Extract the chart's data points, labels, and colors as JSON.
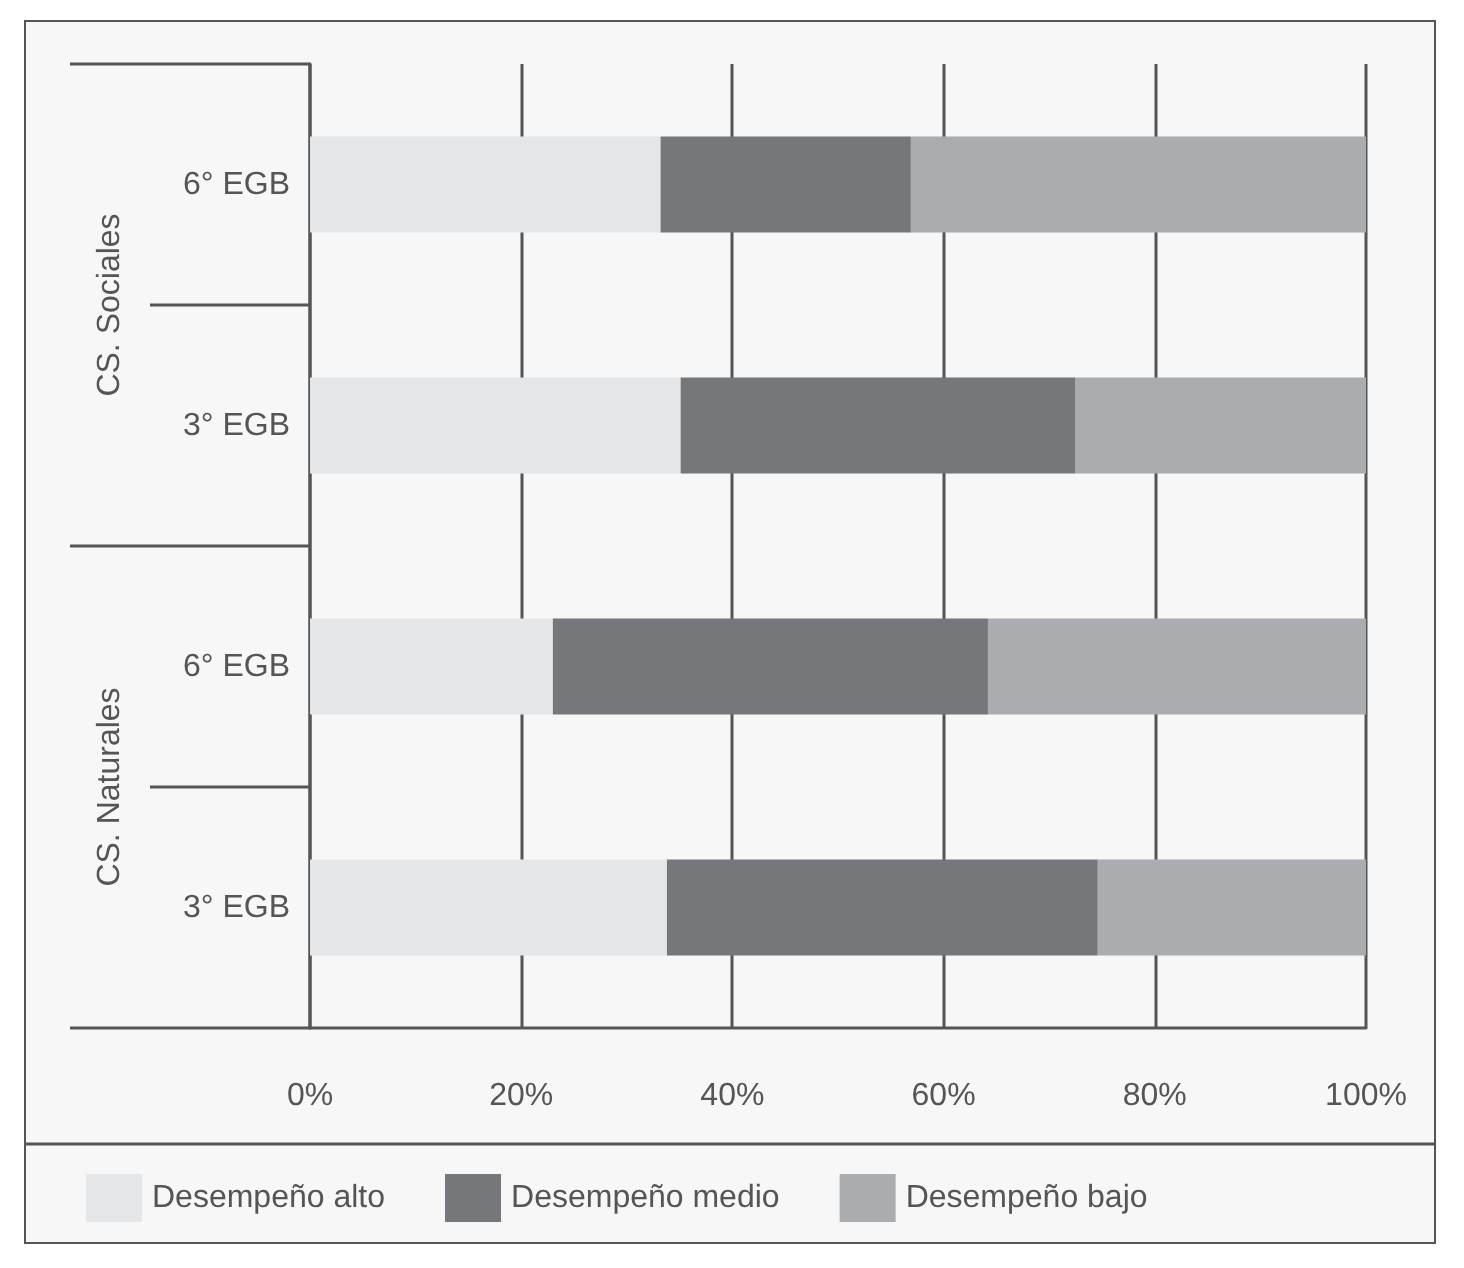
{
  "chart_data": {
    "type": "bar",
    "orientation": "horizontal",
    "stacked": true,
    "categories": [
      "6° EGB",
      "3° EGB",
      "6° EGB",
      "3° EGB"
    ],
    "series": [
      {
        "name": "Desempeño alto",
        "color": "#e5e6e8",
        "values": [
          33.2,
          35.1,
          23.0,
          33.8
        ]
      },
      {
        "name": "Desempeño medio",
        "color": "#76777b",
        "values": [
          23.7,
          37.4,
          41.2,
          40.8
        ]
      },
      {
        "name": "Desempeño bajo",
        "color": "#abacb0",
        "values": [
          43.1,
          27.5,
          35.8,
          25.4
        ]
      }
    ],
    "xlim": [
      0,
      100
    ],
    "xticks": [
      {
        "value": 0,
        "label": "0%"
      },
      {
        "value": 20,
        "label": "20%"
      },
      {
        "value": 40,
        "label": "40%"
      },
      {
        "value": 60,
        "label": "60%"
      },
      {
        "value": 80,
        "label": "80%"
      },
      {
        "value": 100,
        "label": "100%"
      }
    ],
    "annotations": [
      "CS. Sociales",
      "CS. Naturales"
    ],
    "grid": "x",
    "legend": "bottom"
  }
}
